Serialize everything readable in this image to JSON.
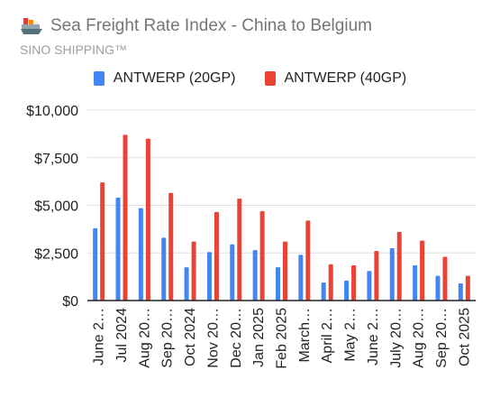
{
  "header": {
    "title": "Sea Freight Rate Index - China to Belgium",
    "subtitle": "SINO SHIPPING™",
    "icon": "ship-icon"
  },
  "colors": {
    "series1": "#4285f4",
    "series2": "#ea4335",
    "axis": "#222222",
    "grid": "#e0e0e0"
  },
  "chart_data": {
    "type": "bar",
    "title": "Sea Freight Rate Index - China to Belgium",
    "subtitle": "SINO SHIPPING™",
    "legend_position": "top",
    "grid": true,
    "ylim": [
      0,
      10000
    ],
    "yticks": [
      "$0",
      "$2,500",
      "$5,000",
      "$7,500",
      "$10,000"
    ],
    "categories": [
      "June 2…",
      "Jul 2024",
      "Aug 20…",
      "Sep 20…",
      "Oct 2024",
      "Nov 20…",
      "Dec 20…",
      "Jan 2025",
      "Feb 2025",
      "March…",
      "April 2…",
      "May 2…",
      "June 2…",
      "July 20…",
      "Aug 20…",
      "Sep 20…",
      "Oct 2025"
    ],
    "series": [
      {
        "name": "ANTWERP (20GP)",
        "values": [
          3800,
          5400,
          4850,
          3300,
          1750,
          2550,
          2950,
          2650,
          1750,
          2400,
          950,
          1050,
          1550,
          2750,
          1850,
          1300,
          900
        ]
      },
      {
        "name": "ANTWERP (40GP)",
        "values": [
          6200,
          8700,
          8500,
          5650,
          3100,
          4650,
          5350,
          4700,
          3100,
          4200,
          1900,
          1850,
          2600,
          3600,
          3150,
          2300,
          1300
        ]
      }
    ]
  }
}
